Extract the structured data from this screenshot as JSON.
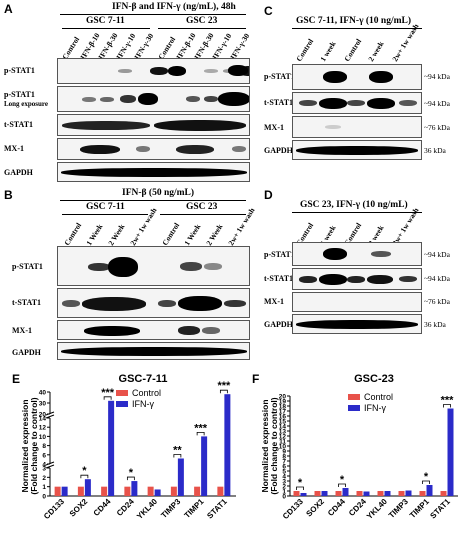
{
  "panels": {
    "A": {
      "letter": "A",
      "title": "IFN-β and IFN-γ (ng/mL), 48h",
      "groups": [
        "GSC 7-11",
        "GSC 23"
      ],
      "lanes": [
        "Control",
        "IFN-β-10",
        "IFN-β-30",
        "IFN-γ-10",
        "IFN-γ-30",
        "Control",
        "IFN-β-10",
        "IFN-β-30",
        "IFN-γ-10",
        "IFN-γ-30"
      ],
      "rows": [
        "p-STAT1",
        "p-STAT1",
        "t-STAT1",
        "MX-1",
        "GAPDH"
      ],
      "row2_sub": "Long exposure"
    },
    "B": {
      "letter": "B",
      "title": "IFN-β (50 ng/mL)",
      "groups": [
        "GSC 7-11",
        "GSC 23"
      ],
      "lanes": [
        "Control",
        "1 Week",
        "2 Week",
        "2w+ 1w wash",
        "Control",
        "1 Week",
        "2 Week",
        "2w+ 1w wash"
      ],
      "rows": [
        "p-STAT1",
        "t-STAT1",
        "MX-1",
        "GAPDH"
      ]
    },
    "C": {
      "letter": "C",
      "title": "GSC 7-11, IFN-γ (10 ng/mL)",
      "lanes": [
        "Control",
        "1 week",
        "Control",
        "2 week",
        "2w+ 1w wash"
      ],
      "rows": [
        "p-STAT1",
        "t-STAT1",
        "MX-1",
        "GAPDH"
      ],
      "mw": [
        "~94 kDa",
        "~94 kDa",
        "~76 kDa",
        "36 kDa"
      ]
    },
    "D": {
      "letter": "D",
      "title": "GSC 23, IFN-γ (10 ng/mL)",
      "lanes": [
        "Control",
        "1 week",
        "Control",
        "2 week",
        "2w+ 1w wash"
      ],
      "rows": [
        "p-STAT1",
        "t-STAT1",
        "MX-1",
        "GAPDH"
      ],
      "mw": [
        "~94 kDa",
        "~94 kDa",
        "~76 kDa",
        "36 kDa"
      ]
    }
  },
  "charts": {
    "E": {
      "letter": "E"
    },
    "F": {
      "letter": "F"
    }
  },
  "chart_data": [
    {
      "type": "bar",
      "title": "GSC-7-11",
      "ylabel": "Normalized expression (Fold change to control)",
      "categories": [
        "CD133",
        "SOX2",
        "CD44",
        "CD24",
        "YKL40",
        "TIMP3",
        "TIMP1",
        "STAT1"
      ],
      "series": [
        {
          "name": "Control",
          "color": "#e8524a",
          "values": [
            1,
            1,
            1,
            1,
            1,
            1,
            1,
            1
          ]
        },
        {
          "name": "IFN-γ",
          "color": "#2b2bc9",
          "values": [
            1.0,
            1.8,
            32,
            1.6,
            0.7,
            5.2,
            10,
            38
          ]
        }
      ],
      "y_axis": "broken",
      "y_segments": [
        {
          "range": [
            0,
            3
          ],
          "ticks": [
            0,
            1,
            2,
            3
          ]
        },
        {
          "range": [
            4,
            14
          ],
          "ticks": [
            4,
            6,
            8,
            10,
            12,
            14
          ]
        },
        {
          "range": [
            20,
            40
          ],
          "ticks": [
            20,
            30,
            40
          ]
        }
      ],
      "significance": [
        {
          "category": "SOX2",
          "label": "*"
        },
        {
          "category": "CD44",
          "label": "***"
        },
        {
          "category": "CD24",
          "label": "*"
        },
        {
          "category": "TIMP3",
          "label": "**"
        },
        {
          "category": "TIMP1",
          "label": "***"
        },
        {
          "category": "STAT1",
          "label": "***"
        }
      ],
      "legend": "top-left"
    },
    {
      "type": "bar",
      "title": "GSC-23",
      "ylabel": "Normalized expression (Fold change to control)",
      "categories": [
        "CD133",
        "SOX2",
        "CD44",
        "CD24",
        "YKL40",
        "TIMP3",
        "TIMP1",
        "STAT1"
      ],
      "series": [
        {
          "name": "Control",
          "color": "#e8524a",
          "values": [
            1,
            1,
            1,
            1,
            1,
            1,
            1,
            1
          ]
        },
        {
          "name": "IFN-γ",
          "color": "#2b2bc9",
          "values": [
            0.6,
            1.0,
            1.6,
            0.9,
            1.0,
            1.1,
            2.2,
            17.5
          ]
        }
      ],
      "ylim": [
        0,
        20
      ],
      "yticks": [
        0,
        1,
        2,
        3,
        4,
        5,
        6,
        7,
        8,
        9,
        10,
        11,
        12,
        13,
        14,
        15,
        16,
        17,
        18,
        19,
        20
      ],
      "significance": [
        {
          "category": "CD133",
          "label": "*"
        },
        {
          "category": "CD44",
          "label": "*"
        },
        {
          "category": "TIMP1",
          "label": "*"
        },
        {
          "category": "STAT1",
          "label": "***"
        }
      ],
      "legend": "top-center"
    }
  ]
}
